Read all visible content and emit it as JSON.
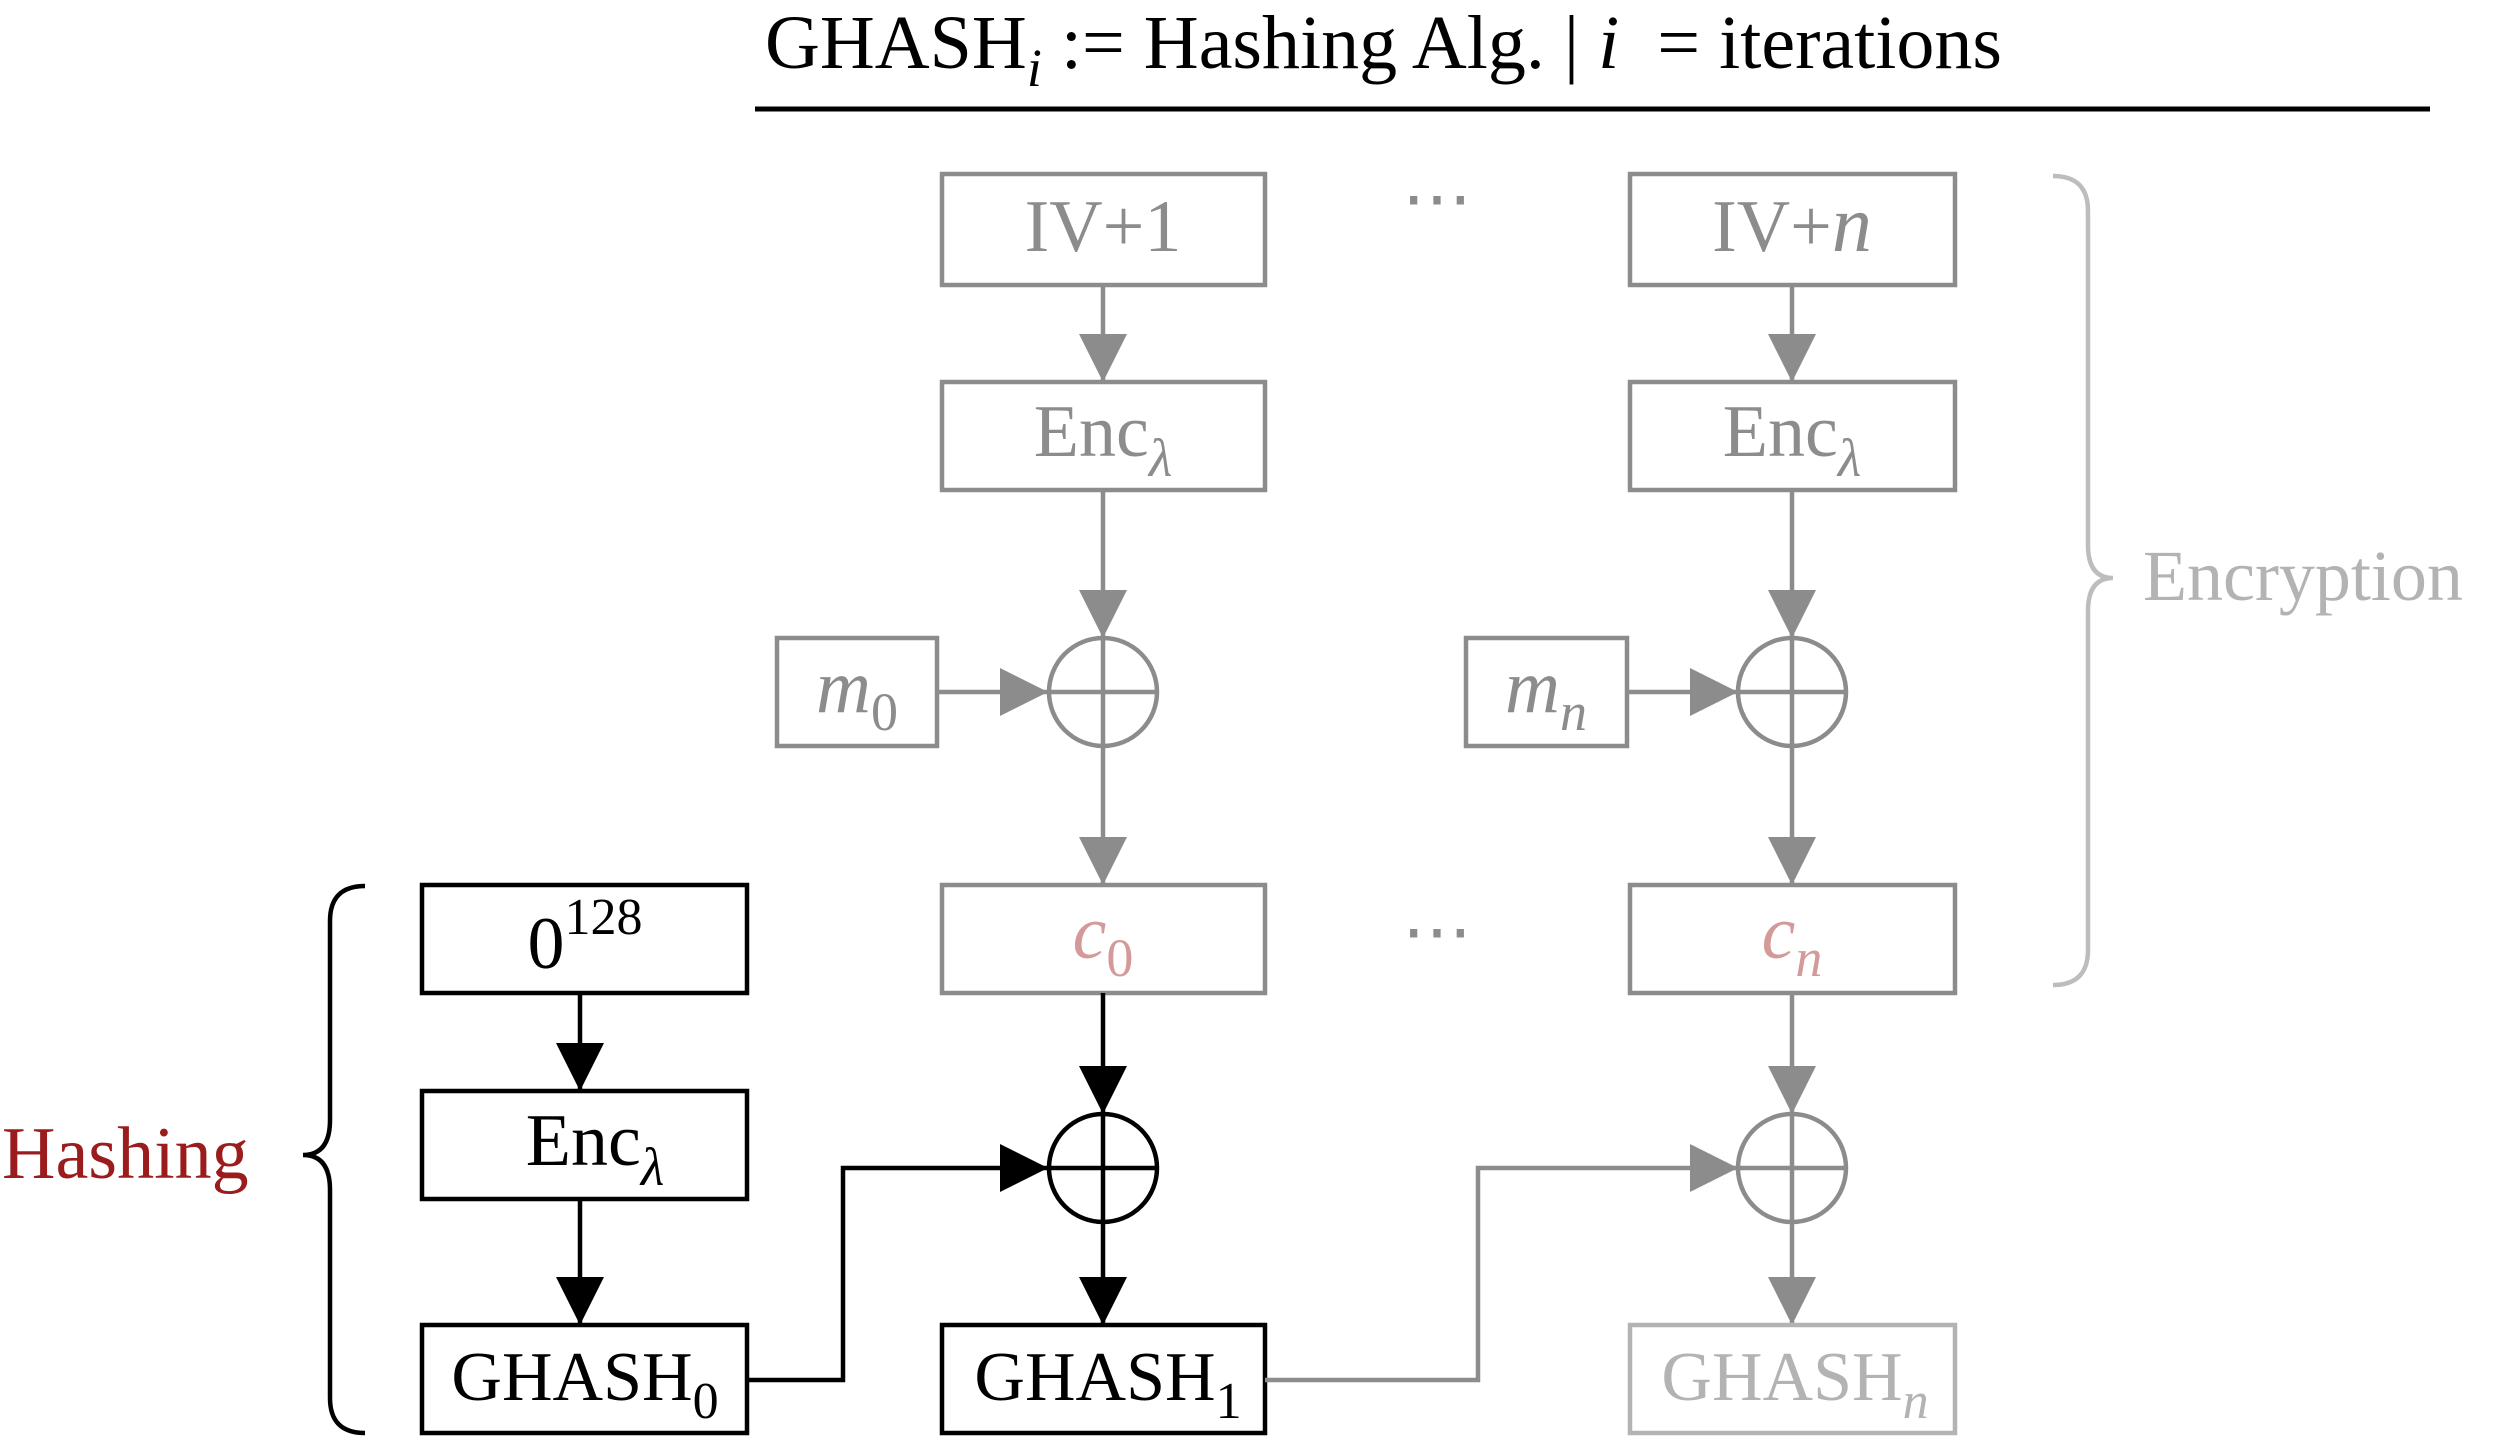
{
  "header": {
    "left": "GHASH",
    "left_sub": "i",
    "middle": " := Hashing Alg. | ",
    "var": "i",
    "right": "  = iterations"
  },
  "encryption": {
    "iv1": "IV+1",
    "ivn_prefix": "IV+",
    "ivn_var": "n",
    "enc": "Enc",
    "enc_sub": "λ",
    "m0": "m",
    "m0_sub": "0",
    "mn": "m",
    "mn_sub": "n",
    "c0": "c",
    "c0_sub": "0",
    "cn": "c",
    "cn_sub": "n",
    "ellipsis": "⋯",
    "label": "Encryption"
  },
  "hashing": {
    "zero": "0",
    "zero_sup": "128",
    "enc": "Enc",
    "enc_sub": "λ",
    "g0": "GHASH",
    "g0_sub": "0",
    "g1": "GHASH",
    "g1_sub": "1",
    "gn": "GHASH",
    "gn_sub": "n",
    "label": "Hashing"
  },
  "colors": {
    "black": "#000000",
    "gray": "#8c8c8c",
    "light": "#b3b3b3",
    "red": "#9b1c1c",
    "pink": "#d49a9a"
  }
}
